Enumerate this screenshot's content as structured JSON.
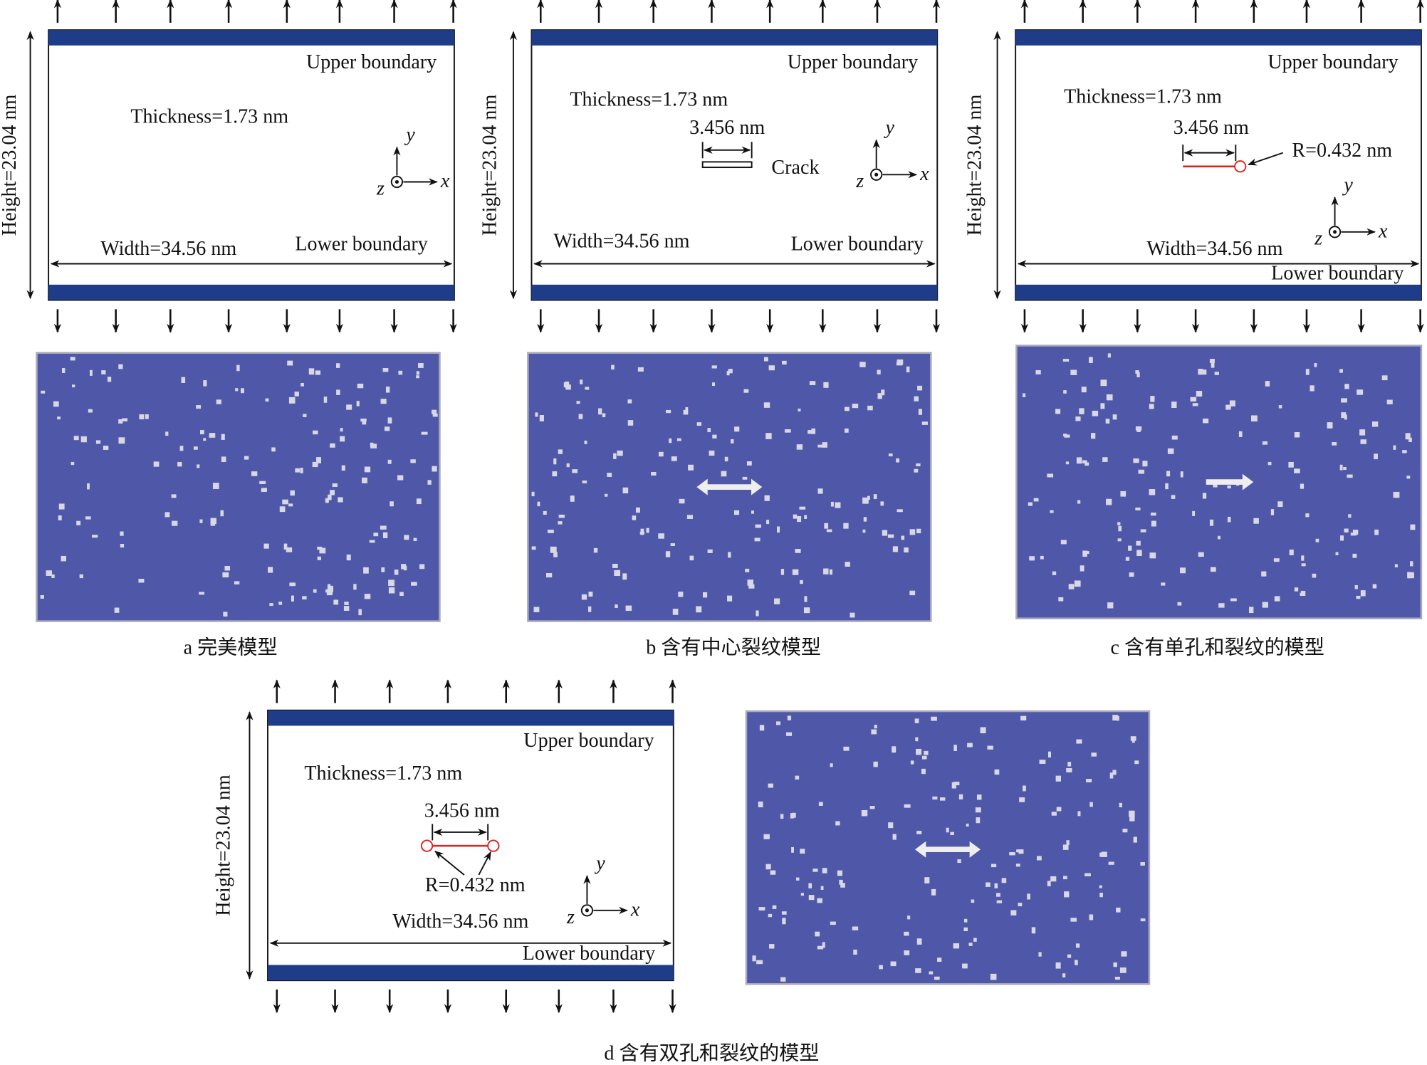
{
  "panels": [
    {
      "label": "a  完美模型",
      "upper_boundary": "Upper boundary",
      "lower_boundary": "Lower boundary",
      "thickness": "Thickness=1.73 nm",
      "height": "Height=23.04 nm",
      "width": "Width=34.56 nm",
      "axes": {
        "x": "x",
        "y": "y",
        "z": "z"
      }
    },
    {
      "label": "b  含有中心裂纹模型",
      "upper_boundary": "Upper boundary",
      "lower_boundary": "Lower boundary",
      "thickness": "Thickness=1.73 nm",
      "height": "Height=23.04 nm",
      "width": "Width=34.56 nm",
      "axes": {
        "x": "x",
        "y": "y",
        "z": "z"
      },
      "crack_length": "3.456 nm",
      "crack": "Crack"
    },
    {
      "label": "c  含有单孔和裂纹的模型",
      "upper_boundary": "Upper boundary",
      "lower_boundary": "Lower boundary",
      "thickness": "Thickness=1.73 nm",
      "height": "Height=23.04 nm",
      "width": "Width=34.56 nm",
      "axes": {
        "x": "x",
        "y": "y",
        "z": "z"
      },
      "crack_length": "3.456 nm",
      "radius": "R=0.432 nm"
    },
    {
      "label": "d  含有双孔和裂纹的模型",
      "upper_boundary": "Upper boundary",
      "lower_boundary": "Lower boundary",
      "thickness": "Thickness=1.73 nm",
      "height": "Height=23.04 nm",
      "width": "Width=34.56 nm",
      "axes": {
        "x": "x",
        "y": "y",
        "z": "z"
      },
      "crack_length": "3.456 nm",
      "radius": "R=0.432 nm"
    }
  ]
}
